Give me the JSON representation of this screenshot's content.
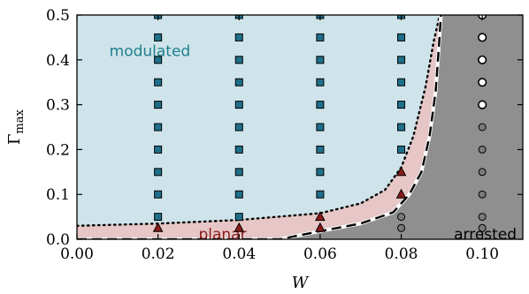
{
  "chart_data": {
    "type": "scatter",
    "title": "",
    "xlabel": "W",
    "ylabel_main": "Γ",
    "ylabel_sub": "max",
    "xlim": [
      0.0,
      0.11
    ],
    "ylim": [
      0.0,
      0.5
    ],
    "xticks": [
      "0.00",
      "0.02",
      "0.04",
      "0.06",
      "0.08",
      "0.10"
    ],
    "xtick_values": [
      0.0,
      0.02,
      0.04,
      0.06,
      0.08,
      0.1
    ],
    "yticks": [
      "0.0",
      "0.1",
      "0.2",
      "0.3",
      "0.4",
      "0.5"
    ],
    "ytick_values": [
      0.0,
      0.1,
      0.2,
      0.3,
      0.4,
      0.5
    ],
    "regions": [
      {
        "label": "modulated",
        "color": "#cfe4ea",
        "label_color": "#1d7f8c",
        "label_pos": [
          0.008,
          0.42
        ]
      },
      {
        "label": "planar",
        "color": "#e6c6c6",
        "label_color": "#8b1a1a",
        "label_pos": [
          0.03,
          0.012
        ]
      },
      {
        "label": "arrested",
        "color": "#8f8f8f",
        "label_color": "#000000",
        "label_pos": [
          0.093,
          0.012
        ]
      }
    ],
    "boundaries": {
      "dotted": [
        [
          0.0,
          0.03
        ],
        [
          0.02,
          0.035
        ],
        [
          0.04,
          0.043
        ],
        [
          0.06,
          0.058
        ],
        [
          0.07,
          0.08
        ],
        [
          0.076,
          0.11
        ],
        [
          0.08,
          0.16
        ],
        [
          0.083,
          0.23
        ],
        [
          0.086,
          0.34
        ],
        [
          0.088,
          0.44
        ],
        [
          0.0895,
          0.5
        ]
      ],
      "dashed": [
        [
          0.0,
          0.0
        ],
        [
          0.05,
          0.0
        ],
        [
          0.06,
          0.018
        ],
        [
          0.07,
          0.035
        ],
        [
          0.078,
          0.06
        ],
        [
          0.082,
          0.1
        ],
        [
          0.085,
          0.15
        ],
        [
          0.087,
          0.23
        ],
        [
          0.0885,
          0.33
        ],
        [
          0.0893,
          0.43
        ],
        [
          0.0898,
          0.5
        ]
      ]
    },
    "series": [
      {
        "name": "modulated",
        "marker": "square",
        "color": "#1e6f8a",
        "points": [
          [
            0.02,
            0.05
          ],
          [
            0.02,
            0.1
          ],
          [
            0.02,
            0.15
          ],
          [
            0.02,
            0.2
          ],
          [
            0.02,
            0.25
          ],
          [
            0.02,
            0.3
          ],
          [
            0.02,
            0.35
          ],
          [
            0.02,
            0.4
          ],
          [
            0.02,
            0.45
          ],
          [
            0.02,
            0.5
          ],
          [
            0.04,
            0.05
          ],
          [
            0.04,
            0.1
          ],
          [
            0.04,
            0.15
          ],
          [
            0.04,
            0.2
          ],
          [
            0.04,
            0.25
          ],
          [
            0.04,
            0.3
          ],
          [
            0.04,
            0.35
          ],
          [
            0.04,
            0.4
          ],
          [
            0.04,
            0.45
          ],
          [
            0.04,
            0.5
          ],
          [
            0.06,
            0.1
          ],
          [
            0.06,
            0.15
          ],
          [
            0.06,
            0.2
          ],
          [
            0.06,
            0.25
          ],
          [
            0.06,
            0.3
          ],
          [
            0.06,
            0.35
          ],
          [
            0.06,
            0.4
          ],
          [
            0.06,
            0.45
          ],
          [
            0.06,
            0.5
          ],
          [
            0.08,
            0.2
          ],
          [
            0.08,
            0.25
          ],
          [
            0.08,
            0.3
          ],
          [
            0.08,
            0.35
          ],
          [
            0.08,
            0.4
          ],
          [
            0.08,
            0.45
          ],
          [
            0.08,
            0.5
          ]
        ]
      },
      {
        "name": "planar",
        "marker": "triangle",
        "color": "#8b1a1a",
        "points": [
          [
            0.02,
            0.025
          ],
          [
            0.04,
            0.025
          ],
          [
            0.06,
            0.025
          ],
          [
            0.06,
            0.05
          ],
          [
            0.08,
            0.1
          ],
          [
            0.08,
            0.15
          ]
        ]
      },
      {
        "name": "arrested",
        "marker": "circle-gray",
        "color": "#7a7a7a",
        "points": [
          [
            0.08,
            0.025
          ],
          [
            0.08,
            0.05
          ],
          [
            0.1,
            0.025
          ],
          [
            0.1,
            0.05
          ],
          [
            0.1,
            0.1
          ],
          [
            0.1,
            0.15
          ],
          [
            0.1,
            0.2
          ],
          [
            0.1,
            0.25
          ]
        ]
      },
      {
        "name": "arrested-white",
        "marker": "circle-white",
        "color": "#ffffff",
        "points": [
          [
            0.1,
            0.3
          ],
          [
            0.1,
            0.35
          ],
          [
            0.1,
            0.4
          ],
          [
            0.1,
            0.45
          ],
          [
            0.1,
            0.5
          ]
        ]
      }
    ],
    "grid": false,
    "legend": "none"
  }
}
